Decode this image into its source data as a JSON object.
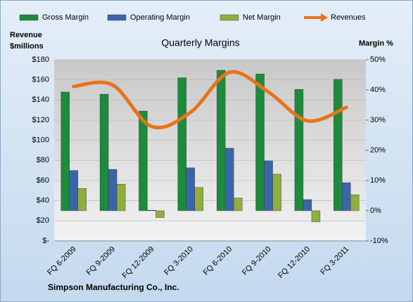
{
  "chart_data": {
    "type": "combo",
    "title": "Quarterly Margins",
    "ylabel": [
      "Revenue",
      "$millions"
    ],
    "y2label": "Margin %",
    "note": "Simpson Manufacturing Co., Inc.",
    "categories": [
      "FQ 6-2009",
      "FQ 9-2009",
      "FQ 12-2009",
      "FQ 3-2010",
      "FQ 6-2010",
      "FQ 9-2010",
      "FQ 12-2010",
      "FQ 3-2011"
    ],
    "series": [
      {
        "name": "Gross Margin",
        "type": "bar",
        "axis": "y2",
        "color": "#1e8a3c",
        "values": [
          39.3,
          38.6,
          33.0,
          44.0,
          46.5,
          45.3,
          40.2,
          43.5
        ]
      },
      {
        "name": "Operating Margin",
        "type": "bar",
        "axis": "y2",
        "color": "#3b65a9",
        "values": [
          13.3,
          13.7,
          0.2,
          14.2,
          20.7,
          16.5,
          3.7,
          9.3
        ]
      },
      {
        "name": "Net Margin",
        "type": "bar",
        "axis": "y2",
        "color": "#8fae3c",
        "values": [
          7.4,
          8.8,
          -2.3,
          7.7,
          4.2,
          12.1,
          -3.7,
          5.3
        ]
      },
      {
        "name": "Revenues",
        "type": "line",
        "color": "#e8731c",
        "values": [
          153.5,
          154.9,
          113.7,
          127.7,
          167.4,
          147.9,
          119.3,
          132.6
        ]
      }
    ],
    "ylim": [
      0,
      180
    ],
    "yticks": [
      {
        "value": 0,
        "label": "$-"
      },
      {
        "value": 20,
        "label": "$20"
      },
      {
        "value": 40,
        "label": "$40"
      },
      {
        "value": 60,
        "label": "$60"
      },
      {
        "value": 80,
        "label": "$80"
      },
      {
        "value": 100,
        "label": "$100"
      },
      {
        "value": 120,
        "label": "$120"
      },
      {
        "value": 140,
        "label": "$140"
      },
      {
        "value": 160,
        "label": "$160"
      },
      {
        "value": 180,
        "label": "$180"
      }
    ],
    "y2lim": [
      -10,
      50
    ],
    "y2ticks": [
      {
        "value": -10,
        "label": "-10%"
      },
      {
        "value": 0,
        "label": "0%"
      },
      {
        "value": 10,
        "label": "10%"
      },
      {
        "value": 20,
        "label": "20%"
      },
      {
        "value": 30,
        "label": "30%"
      },
      {
        "value": 40,
        "label": "40%"
      },
      {
        "value": 50,
        "label": "50%"
      }
    ],
    "grid": true
  }
}
